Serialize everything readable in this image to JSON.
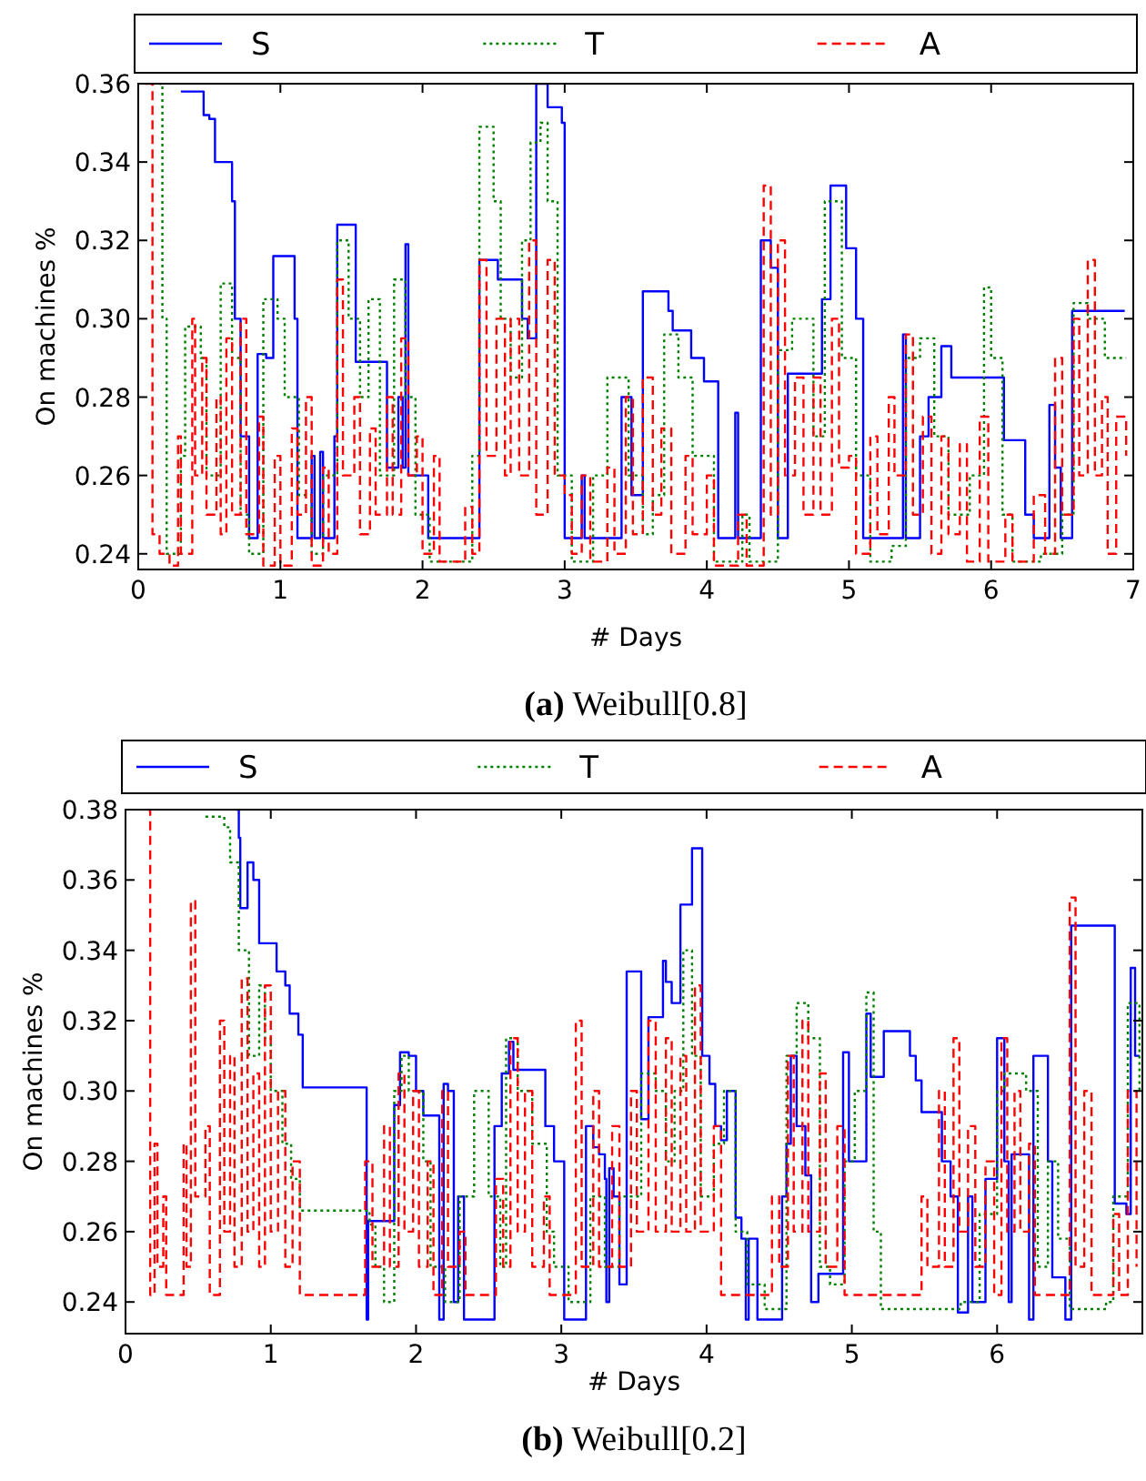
{
  "chart_data": [
    {
      "type": "step",
      "xlabel": "# Days",
      "ylabel": "On machines %",
      "annotations": [
        "(a) Weibull[0.8]"
      ],
      "legend": "top",
      "xlim": [
        0,
        7
      ],
      "xticks": [
        0,
        1,
        2,
        3,
        4,
        5,
        6,
        7
      ],
      "ylim": [
        0.236,
        0.36
      ],
      "yticks": [
        0.24,
        0.26,
        0.28,
        {
          "value": 0.3,
          "label": "0.30"
        },
        0.32,
        0.34,
        0.36
      ],
      "series": [
        {
          "name": "S",
          "color": "#0000ff",
          "line_style": "solid",
          "x": [
            0.3,
            0.46,
            0.5,
            0.54,
            0.66,
            0.68,
            0.72,
            0.78,
            0.84,
            0.9,
            0.95,
            1.1,
            1.12,
            1.22,
            1.24,
            1.28,
            1.3,
            1.38,
            1.4,
            1.53,
            1.75,
            1.83,
            1.86,
            1.88,
            1.9,
            1.98,
            2.04,
            2.4,
            2.53,
            2.7,
            2.74,
            2.8,
            2.88,
            2.98,
            3.0,
            3.12,
            3.14,
            3.4,
            3.47,
            3.55,
            3.73,
            3.76,
            3.89,
            3.98,
            4.08,
            4.2,
            4.22,
            4.38,
            4.45,
            4.5,
            4.57,
            4.81,
            4.87,
            4.98,
            5.05,
            5.1,
            5.38,
            5.4,
            5.5,
            5.56,
            5.65,
            5.72,
            6.09,
            6.24,
            6.3,
            6.41,
            6.45,
            6.49,
            6.57,
            6.94
          ],
          "values": [
            0.358,
            0.352,
            0.351,
            0.34,
            0.33,
            0.3,
            0.27,
            0.244,
            0.291,
            0.29,
            0.316,
            0.3,
            0.244,
            0.265,
            0.244,
            0.266,
            0.244,
            0.27,
            0.324,
            0.289,
            0.262,
            0.28,
            0.262,
            0.319,
            0.26,
            0.26,
            0.244,
            0.315,
            0.31,
            0.3,
            0.295,
            0.36,
            0.354,
            0.35,
            0.244,
            0.26,
            0.244,
            0.28,
            0.255,
            0.307,
            0.302,
            0.297,
            0.29,
            0.284,
            0.244,
            0.276,
            0.244,
            0.32,
            0.313,
            0.244,
            0.286,
            0.305,
            0.334,
            0.318,
            0.3,
            0.244,
            0.296,
            0.244,
            0.27,
            0.28,
            0.293,
            0.285,
            0.269,
            0.25,
            0.244,
            0.278,
            0.262,
            0.244,
            0.302,
            0.302
          ]
        },
        {
          "name": "T",
          "color": "#008000",
          "line_style": "dotted",
          "x": [
            0.1,
            0.17,
            0.2,
            0.3,
            0.33,
            0.44,
            0.48,
            0.58,
            0.66,
            0.72,
            0.78,
            0.88,
            0.98,
            1.03,
            1.13,
            1.22,
            1.3,
            1.4,
            1.48,
            1.56,
            1.62,
            1.7,
            1.8,
            1.88,
            1.95,
            2.05,
            2.35,
            2.4,
            2.5,
            2.55,
            2.62,
            2.7,
            2.76,
            2.83,
            2.88,
            2.95,
            3.05,
            3.2,
            3.3,
            3.45,
            3.55,
            3.62,
            3.7,
            3.8,
            3.9,
            4.05,
            4.25,
            4.3,
            4.5,
            4.6,
            4.75,
            4.83,
            4.95,
            5.05,
            5.15,
            5.3,
            5.4,
            5.5,
            5.6,
            5.7,
            5.85,
            5.95,
            6.0,
            6.08,
            6.15,
            6.35,
            6.5,
            6.58,
            6.68,
            6.8,
            6.95
          ],
          "values": [
            0.36,
            0.3,
            0.24,
            0.265,
            0.298,
            0.29,
            0.26,
            0.309,
            0.29,
            0.25,
            0.24,
            0.305,
            0.3,
            0.28,
            0.255,
            0.24,
            0.26,
            0.32,
            0.3,
            0.28,
            0.305,
            0.26,
            0.31,
            0.28,
            0.25,
            0.238,
            0.265,
            0.349,
            0.33,
            0.3,
            0.285,
            0.32,
            0.345,
            0.35,
            0.33,
            0.26,
            0.238,
            0.26,
            0.285,
            0.26,
            0.245,
            0.255,
            0.296,
            0.285,
            0.265,
            0.238,
            0.25,
            0.238,
            0.292,
            0.3,
            0.27,
            0.33,
            0.29,
            0.26,
            0.238,
            0.242,
            0.29,
            0.295,
            0.27,
            0.25,
            0.26,
            0.308,
            0.29,
            0.25,
            0.238,
            0.24,
            0.25,
            0.304,
            0.3,
            0.29,
            0.29
          ]
        },
        {
          "name": "A",
          "color": "#ff0000",
          "line_style": "dashed",
          "x": [
            0.05,
            0.1,
            0.15,
            0.22,
            0.28,
            0.3,
            0.38,
            0.4,
            0.45,
            0.48,
            0.55,
            0.58,
            0.62,
            0.66,
            0.72,
            0.76,
            0.85,
            0.88,
            0.96,
            1.0,
            1.08,
            1.12,
            1.18,
            1.22,
            1.3,
            1.34,
            1.4,
            1.44,
            1.52,
            1.56,
            1.63,
            1.67,
            1.75,
            1.79,
            1.85,
            1.9,
            1.96,
            2.0,
            2.08,
            2.12,
            2.3,
            2.35,
            2.4,
            2.45,
            2.52,
            2.58,
            2.62,
            2.68,
            2.75,
            2.8,
            2.88,
            2.93,
            3.0,
            3.05,
            3.12,
            3.18,
            3.3,
            3.35,
            3.43,
            3.48,
            3.55,
            3.62,
            3.68,
            3.75,
            3.85,
            3.9,
            4.0,
            4.05,
            4.22,
            4.28,
            4.4,
            4.45,
            4.5,
            4.55,
            4.62,
            4.68,
            4.75,
            4.8,
            4.88,
            4.93,
            5.0,
            5.05,
            5.15,
            5.2,
            5.28,
            5.32,
            5.4,
            5.45,
            5.52,
            5.58,
            5.65,
            5.7,
            5.78,
            5.83,
            5.92,
            5.98,
            6.1,
            6.15,
            6.3,
            6.38,
            6.45,
            6.5,
            6.58,
            6.62,
            6.68,
            6.73,
            6.78,
            6.82,
            6.88,
            6.95
          ],
          "values": [
            0.36,
            0.245,
            0.24,
            0.237,
            0.27,
            0.24,
            0.3,
            0.26,
            0.29,
            0.25,
            0.28,
            0.245,
            0.295,
            0.25,
            0.3,
            0.245,
            0.275,
            0.237,
            0.265,
            0.237,
            0.272,
            0.25,
            0.28,
            0.237,
            0.262,
            0.24,
            0.31,
            0.26,
            0.28,
            0.245,
            0.272,
            0.25,
            0.28,
            0.25,
            0.295,
            0.26,
            0.27,
            0.24,
            0.265,
            0.238,
            0.252,
            0.24,
            0.315,
            0.265,
            0.3,
            0.26,
            0.3,
            0.26,
            0.32,
            0.25,
            0.315,
            0.26,
            0.255,
            0.24,
            0.26,
            0.238,
            0.262,
            0.24,
            0.28,
            0.245,
            0.285,
            0.25,
            0.272,
            0.24,
            0.265,
            0.245,
            0.26,
            0.237,
            0.25,
            0.237,
            0.334,
            0.25,
            0.32,
            0.26,
            0.285,
            0.25,
            0.285,
            0.25,
            0.3,
            0.262,
            0.265,
            0.24,
            0.27,
            0.245,
            0.28,
            0.26,
            0.296,
            0.25,
            0.275,
            0.24,
            0.27,
            0.245,
            0.268,
            0.238,
            0.275,
            0.238,
            0.25,
            0.238,
            0.255,
            0.24,
            0.29,
            0.25,
            0.3,
            0.26,
            0.315,
            0.26,
            0.28,
            0.24,
            0.275,
            0.265
          ]
        }
      ]
    },
    {
      "type": "step",
      "xlabel": "# Days",
      "ylabel": "On machines %",
      "annotations": [
        "(b) Weibull[0.2]"
      ],
      "legend": "top",
      "xlim": [
        0,
        7
      ],
      "xticks": [
        0,
        1,
        2,
        3,
        4,
        5,
        6
      ],
      "ylim": [
        0.231,
        0.38
      ],
      "yticks": [
        0.24,
        0.26,
        0.28,
        {
          "value": 0.3,
          "label": "0.30"
        },
        0.32,
        0.34,
        0.36,
        0.38
      ],
      "series": [
        {
          "name": "S",
          "color": "#0000ff",
          "line_style": "solid",
          "x": [
            0.76,
            0.78,
            0.79,
            0.84,
            0.88,
            0.92,
            1.04,
            1.1,
            1.13,
            1.19,
            1.22,
            1.66,
            1.67,
            1.85,
            1.89,
            1.95,
            2.0,
            2.05,
            2.16,
            2.19,
            2.22,
            2.26,
            2.29,
            2.33,
            2.54,
            2.59,
            2.64,
            2.67,
            2.89,
            2.95,
            3.02,
            3.17,
            3.22,
            3.26,
            3.3,
            3.31,
            3.33,
            3.36,
            3.4,
            3.45,
            3.55,
            3.6,
            3.7,
            3.72,
            3.76,
            3.82,
            3.9,
            3.97,
            4.02,
            4.06,
            4.1,
            4.14,
            4.2,
            4.24,
            4.27,
            4.29,
            4.35,
            4.52,
            4.55,
            4.58,
            4.62,
            4.68,
            4.72,
            4.77,
            4.94,
            4.98,
            5.1,
            5.13,
            5.22,
            5.4,
            5.44,
            5.48,
            5.62,
            5.68,
            5.73,
            5.8,
            5.83,
            5.92,
            6.0,
            6.05,
            6.08,
            6.1,
            6.22,
            6.25,
            6.35,
            6.38,
            6.47,
            6.51,
            6.81,
            6.89,
            6.92,
            6.95,
            6.98
          ],
          "values": [
            0.38,
            0.372,
            0.352,
            0.365,
            0.36,
            0.342,
            0.334,
            0.33,
            0.322,
            0.316,
            0.301,
            0.235,
            0.263,
            0.296,
            0.311,
            0.31,
            0.3,
            0.293,
            0.235,
            0.302,
            0.3,
            0.24,
            0.27,
            0.235,
            0.29,
            0.305,
            0.314,
            0.306,
            0.29,
            0.28,
            0.235,
            0.29,
            0.284,
            0.282,
            0.275,
            0.24,
            0.278,
            0.27,
            0.245,
            0.334,
            0.292,
            0.321,
            0.337,
            0.331,
            0.325,
            0.353,
            0.369,
            0.31,
            0.302,
            0.29,
            0.286,
            0.3,
            0.264,
            0.258,
            0.235,
            0.258,
            0.235,
            0.27,
            0.285,
            0.31,
            0.29,
            0.276,
            0.24,
            0.248,
            0.311,
            0.28,
            0.322,
            0.304,
            0.317,
            0.31,
            0.303,
            0.294,
            0.28,
            0.27,
            0.237,
            0.27,
            0.24,
            0.275,
            0.315,
            0.28,
            0.24,
            0.282,
            0.235,
            0.31,
            0.28,
            0.247,
            0.235,
            0.347,
            0.268,
            0.265,
            0.335,
            0.31,
            0.31
          ]
        },
        {
          "name": "T",
          "color": "#008000",
          "line_style": "dotted",
          "x": [
            0.55,
            0.68,
            0.72,
            0.78,
            0.85,
            0.92,
            0.96,
            1.0,
            1.08,
            1.14,
            1.2,
            1.68,
            1.72,
            1.78,
            1.85,
            1.9,
            1.95,
            2.05,
            2.1,
            2.2,
            2.3,
            2.4,
            2.5,
            2.58,
            2.62,
            2.7,
            2.8,
            2.9,
            2.95,
            3.05,
            3.2,
            3.3,
            3.4,
            3.5,
            3.55,
            3.65,
            3.72,
            3.78,
            3.84,
            3.9,
            3.96,
            4.05,
            4.12,
            4.2,
            4.28,
            4.4,
            4.55,
            4.62,
            4.7,
            4.78,
            4.85,
            4.95,
            5.02,
            5.1,
            5.15,
            5.2,
            5.6,
            5.75,
            5.88,
            6.0,
            6.05,
            6.2,
            6.28,
            6.35,
            6.42,
            6.5,
            6.75,
            6.8,
            6.9,
            6.98
          ],
          "values": [
            0.378,
            0.375,
            0.365,
            0.34,
            0.31,
            0.33,
            0.315,
            0.3,
            0.285,
            0.275,
            0.266,
            0.262,
            0.25,
            0.24,
            0.3,
            0.31,
            0.3,
            0.28,
            0.25,
            0.24,
            0.27,
            0.3,
            0.27,
            0.25,
            0.315,
            0.3,
            0.285,
            0.26,
            0.25,
            0.24,
            0.27,
            0.25,
            0.27,
            0.27,
            0.305,
            0.3,
            0.28,
            0.3,
            0.34,
            0.31,
            0.27,
            0.285,
            0.3,
            0.26,
            0.245,
            0.238,
            0.31,
            0.325,
            0.315,
            0.25,
            0.245,
            0.28,
            0.3,
            0.328,
            0.26,
            0.238,
            0.238,
            0.24,
            0.265,
            0.3,
            0.305,
            0.3,
            0.25,
            0.28,
            0.258,
            0.238,
            0.24,
            0.27,
            0.325,
            0.3
          ]
        },
        {
          "name": "A",
          "color": "#ff0000",
          "line_style": "dashed",
          "x": [
            0.15,
            0.17,
            0.2,
            0.22,
            0.26,
            0.28,
            0.4,
            0.42,
            0.45,
            0.48,
            0.55,
            0.58,
            0.65,
            0.68,
            0.72,
            0.75,
            0.8,
            0.84,
            0.88,
            0.92,
            0.96,
            1.0,
            1.05,
            1.1,
            1.15,
            1.2,
            1.65,
            1.7,
            1.78,
            1.82,
            1.88,
            1.92,
            1.98,
            2.02,
            2.08,
            2.12,
            2.18,
            2.22,
            2.3,
            2.34,
            2.55,
            2.6,
            2.65,
            2.7,
            2.75,
            2.8,
            2.88,
            2.92,
            3.1,
            3.14,
            3.22,
            3.26,
            3.35,
            3.4,
            3.48,
            3.52,
            3.6,
            3.65,
            3.72,
            3.76,
            3.82,
            3.86,
            3.92,
            3.96,
            4.05,
            4.1,
            4.45,
            4.5,
            4.56,
            4.6,
            4.66,
            4.7,
            4.78,
            4.82,
            4.9,
            4.95,
            5.35,
            5.48,
            5.52,
            5.6,
            5.64,
            5.7,
            5.74,
            5.8,
            5.85,
            5.92,
            5.98,
            6.03,
            6.07,
            6.12,
            6.16,
            6.22,
            6.26,
            6.5,
            6.54,
            6.6,
            6.65,
            6.8,
            6.84,
            6.9,
            6.96
          ],
          "values": [
            0.38,
            0.242,
            0.285,
            0.25,
            0.27,
            0.242,
            0.285,
            0.25,
            0.354,
            0.27,
            0.29,
            0.242,
            0.32,
            0.26,
            0.31,
            0.25,
            0.332,
            0.26,
            0.305,
            0.25,
            0.33,
            0.26,
            0.3,
            0.25,
            0.28,
            0.242,
            0.28,
            0.25,
            0.29,
            0.25,
            0.305,
            0.26,
            0.3,
            0.25,
            0.28,
            0.242,
            0.3,
            0.25,
            0.26,
            0.242,
            0.275,
            0.25,
            0.315,
            0.26,
            0.3,
            0.25,
            0.27,
            0.242,
            0.32,
            0.25,
            0.3,
            0.25,
            0.29,
            0.25,
            0.3,
            0.26,
            0.32,
            0.26,
            0.315,
            0.26,
            0.31,
            0.26,
            0.33,
            0.26,
            0.29,
            0.242,
            0.27,
            0.25,
            0.31,
            0.26,
            0.32,
            0.26,
            0.305,
            0.25,
            0.29,
            0.242,
            0.242,
            0.27,
            0.25,
            0.3,
            0.25,
            0.315,
            0.26,
            0.29,
            0.25,
            0.28,
            0.242,
            0.315,
            0.26,
            0.3,
            0.26,
            0.285,
            0.242,
            0.355,
            0.25,
            0.3,
            0.242,
            0.265,
            0.242,
            0.3,
            0.25
          ]
        }
      ]
    }
  ]
}
